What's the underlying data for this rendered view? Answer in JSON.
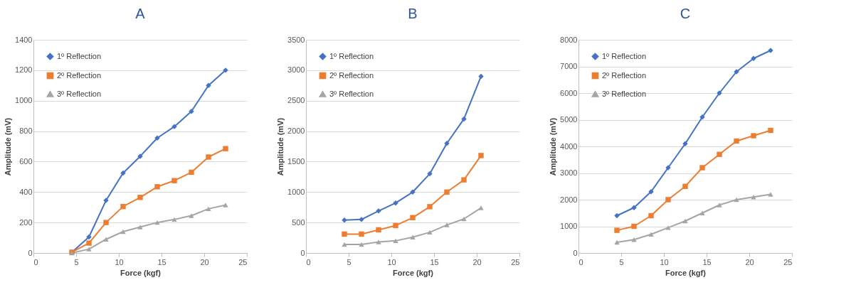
{
  "chart_data": [
    {
      "type": "line",
      "title": "A",
      "xlabel": "Force (kgf)",
      "ylabel": "Amplitude (mV)",
      "xlim": [
        0,
        25
      ],
      "xticks": [
        0,
        5,
        10,
        15,
        20,
        25
      ],
      "ylim": [
        0,
        1400
      ],
      "yticks": [
        0,
        200,
        400,
        600,
        800,
        1000,
        1200,
        1400
      ],
      "grid": "y",
      "legend": "top left",
      "series": [
        {
          "name": "1º Reflection",
          "color": "#4472c4",
          "marker": "diamond",
          "x": [
            4.5,
            6.5,
            8.5,
            10.5,
            12.5,
            14.5,
            16.5,
            18.5,
            20.5,
            22.5
          ],
          "values": [
            5,
            105,
            345,
            525,
            635,
            755,
            830,
            930,
            1100,
            1200
          ]
        },
        {
          "name": "2º Reflection",
          "color": "#ed7d31",
          "marker": "square",
          "x": [
            4.5,
            6.5,
            8.5,
            10.5,
            12.5,
            14.5,
            16.5,
            18.5,
            20.5,
            22.5
          ],
          "values": [
            5,
            65,
            200,
            305,
            365,
            435,
            475,
            530,
            630,
            685
          ]
        },
        {
          "name": "3º Reflection",
          "color": "#a5a5a5",
          "marker": "triangle",
          "x": [
            4.5,
            6.5,
            8.5,
            10.5,
            12.5,
            14.5,
            16.5,
            18.5,
            20.5,
            22.5
          ],
          "values": [
            0,
            25,
            90,
            140,
            170,
            200,
            220,
            245,
            290,
            315
          ]
        }
      ]
    },
    {
      "type": "line",
      "title": "B",
      "xlabel": "Force (kgf)",
      "ylabel": "Amplitude (mV)",
      "xlim": [
        0,
        25
      ],
      "xticks": [
        0,
        5,
        10,
        15,
        20,
        25
      ],
      "ylim": [
        0,
        3500
      ],
      "yticks": [
        0,
        500,
        1000,
        1500,
        2000,
        2500,
        3000,
        3500
      ],
      "grid": "y",
      "legend": "top left",
      "series": [
        {
          "name": "1º Reflection",
          "color": "#4472c4",
          "marker": "diamond",
          "x": [
            4.5,
            6.5,
            8.5,
            10.5,
            12.5,
            14.5,
            16.5,
            18.5,
            20.5
          ],
          "values": [
            540,
            550,
            690,
            820,
            1000,
            1300,
            1800,
            2200,
            2900
          ]
        },
        {
          "name": "2º Reflection",
          "color": "#ed7d31",
          "marker": "square",
          "x": [
            4.5,
            6.5,
            8.5,
            10.5,
            12.5,
            14.5,
            16.5,
            18.5,
            20.5
          ],
          "values": [
            310,
            310,
            380,
            450,
            580,
            760,
            1000,
            1200,
            1600
          ]
        },
        {
          "name": "3º Reflection",
          "color": "#a5a5a5",
          "marker": "triangle",
          "x": [
            4.5,
            6.5,
            8.5,
            10.5,
            12.5,
            14.5,
            16.5,
            18.5,
            20.5
          ],
          "values": [
            140,
            140,
            180,
            200,
            260,
            340,
            460,
            560,
            740
          ]
        }
      ]
    },
    {
      "type": "line",
      "title": "C",
      "xlabel": "Force (kgf)",
      "ylabel": "Amplitude (mV)",
      "xlim": [
        0,
        25
      ],
      "xticks": [
        0,
        5,
        10,
        15,
        20,
        25
      ],
      "ylim": [
        0,
        8000
      ],
      "yticks": [
        0,
        1000,
        2000,
        3000,
        4000,
        5000,
        6000,
        7000,
        8000
      ],
      "grid": "y",
      "legend": "top left",
      "series": [
        {
          "name": "1º Reflection",
          "color": "#4472c4",
          "marker": "diamond",
          "x": [
            4.5,
            6.5,
            8.5,
            10.5,
            12.5,
            14.5,
            16.5,
            18.5,
            20.5,
            22.5
          ],
          "values": [
            1400,
            1700,
            2300,
            3200,
            4100,
            5100,
            6000,
            6800,
            7300,
            7600
          ]
        },
        {
          "name": "2º Reflection",
          "color": "#ed7d31",
          "marker": "square",
          "x": [
            4.5,
            6.5,
            8.5,
            10.5,
            12.5,
            14.5,
            16.5,
            18.5,
            20.5,
            22.5
          ],
          "values": [
            850,
            1000,
            1400,
            2000,
            2500,
            3200,
            3700,
            4200,
            4400,
            4600
          ]
        },
        {
          "name": "3º Reflection",
          "color": "#a5a5a5",
          "marker": "triangle",
          "x": [
            4.5,
            6.5,
            8.5,
            10.5,
            12.5,
            14.5,
            16.5,
            18.5,
            20.5,
            22.5
          ],
          "values": [
            400,
            500,
            700,
            950,
            1200,
            1500,
            1800,
            2000,
            2100,
            2200
          ]
        }
      ]
    }
  ]
}
